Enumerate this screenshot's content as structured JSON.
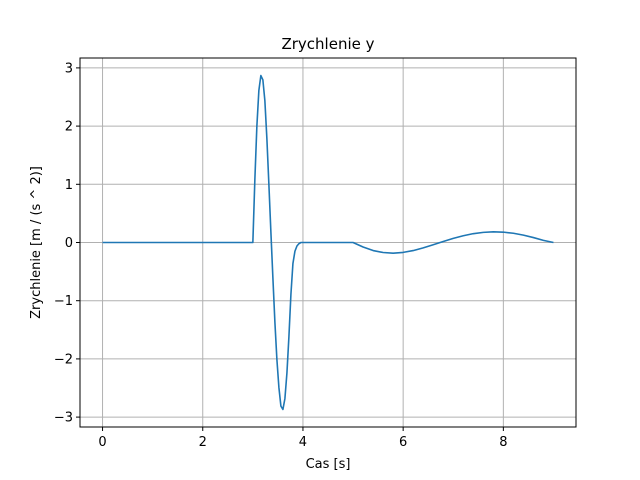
{
  "chart_data": {
    "type": "line",
    "title": "Zrychlenie y",
    "xlabel": "Cas [s]",
    "ylabel": "Zrychlenie [m / (s ^ 2)]",
    "xlim": [
      -0.45,
      9.45
    ],
    "ylim": [
      -3.17,
      3.17
    ],
    "xticks": [
      0,
      2,
      4,
      6,
      8
    ],
    "yticks": [
      -3,
      -2,
      -1,
      0,
      1,
      2,
      3
    ],
    "xtick_labels": [
      "0",
      "2",
      "4",
      "6",
      "8"
    ],
    "ytick_labels": [
      "−3",
      "−2",
      "−1",
      "0",
      "1",
      "2",
      "3"
    ],
    "grid": true,
    "series": [
      {
        "color": "#1f77b4",
        "x": [
          0.0,
          0.5,
          1.0,
          1.5,
          2.0,
          2.5,
          2.98,
          3.0,
          3.04,
          3.08,
          3.12,
          3.16,
          3.2,
          3.24,
          3.28,
          3.32,
          3.36,
          3.4,
          3.44,
          3.48,
          3.52,
          3.56,
          3.6,
          3.64,
          3.68,
          3.72,
          3.76,
          3.8,
          3.84,
          3.88,
          3.92,
          3.96,
          4.0,
          4.02,
          4.5,
          5.0,
          5.2,
          5.4,
          5.6,
          5.8,
          6.0,
          6.2,
          6.4,
          6.6,
          6.8,
          7.0,
          7.2,
          7.4,
          7.6,
          7.8,
          8.0,
          8.2,
          8.4,
          8.6,
          8.8,
          9.0
        ],
        "y": [
          0,
          0,
          0,
          0,
          0,
          0,
          0,
          0.0,
          1.075,
          1.996,
          2.611,
          2.868,
          2.795,
          2.437,
          1.786,
          0.999,
          0.184,
          -0.607,
          -1.367,
          -2.01,
          -2.491,
          -2.811,
          -2.868,
          -2.682,
          -2.243,
          -1.616,
          -0.887,
          -0.36,
          -0.15,
          -0.06,
          -0.02,
          0.0,
          0.0,
          0.0,
          0.0,
          0.0,
          -0.078,
          -0.138,
          -0.172,
          -0.183,
          -0.17,
          -0.139,
          -0.092,
          -0.038,
          0.018,
          0.071,
          0.116,
          0.152,
          0.174,
          0.183,
          0.178,
          0.159,
          0.127,
          0.085,
          0.037,
          0.0
        ]
      }
    ]
  }
}
